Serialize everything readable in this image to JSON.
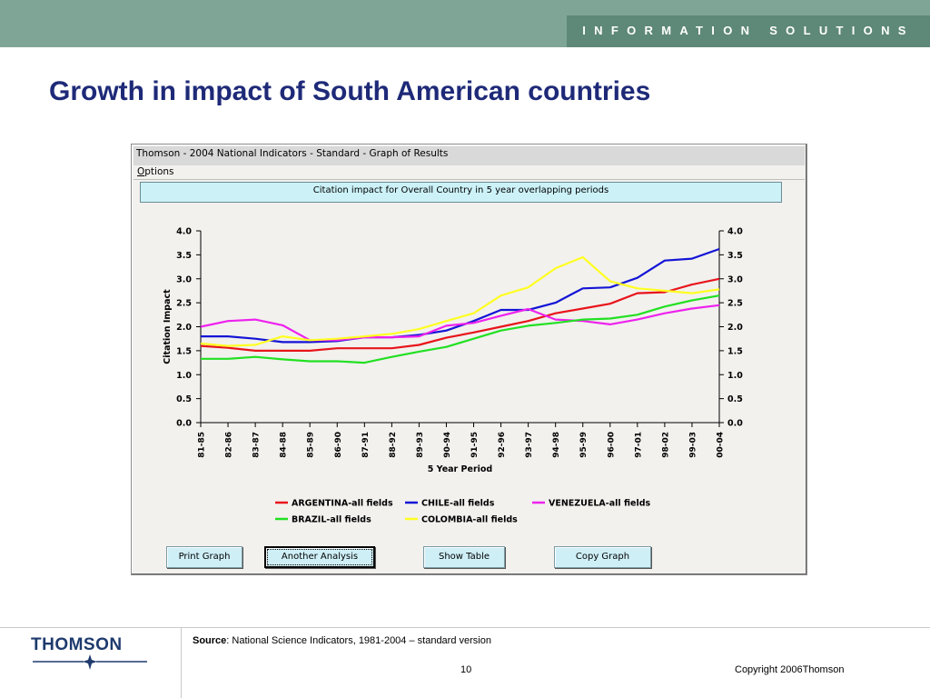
{
  "header": {
    "tagline": "INFORMATION SOLUTIONS"
  },
  "slide_title": "Growth in impact of South American countries",
  "window": {
    "title": "Thomson - 2004 National Indicators - Standard - Graph of Results",
    "menu_options": "Options",
    "chart_caption": "Citation impact for Overall Country in 5 year overlapping periods",
    "buttons": {
      "print": "Print Graph",
      "another": "Another Analysis",
      "show_table": "Show Table",
      "copy": "Copy Graph"
    }
  },
  "chart_data": {
    "type": "line",
    "title": "Citation impact for Overall Country in 5 year overlapping periods",
    "xlabel": "5 Year Period",
    "ylabel": "Citation Impact",
    "ylim": [
      0,
      4
    ],
    "yticks": [
      "0.0",
      "0.5",
      "1.0",
      "1.5",
      "2.0",
      "2.5",
      "3.0",
      "3.5",
      "4.0"
    ],
    "grid": false,
    "legend_position": "bottom",
    "categories": [
      "81-85",
      "82-86",
      "83-87",
      "84-88",
      "85-89",
      "86-90",
      "87-91",
      "88-92",
      "89-93",
      "90-94",
      "91-95",
      "92-96",
      "93-97",
      "94-98",
      "95-99",
      "96-00",
      "97-01",
      "98-02",
      "99-03",
      "00-04"
    ],
    "series": [
      {
        "name": "ARGENTINA-all fields",
        "color": "#e8141b",
        "values": [
          1.6,
          1.56,
          1.5,
          1.5,
          1.5,
          1.55,
          1.55,
          1.55,
          1.62,
          1.77,
          1.88,
          2.0,
          2.12,
          2.28,
          2.38,
          2.48,
          2.7,
          2.72,
          2.88,
          3.0
        ]
      },
      {
        "name": "CHILE-all fields",
        "color": "#1414d6",
        "values": [
          1.8,
          1.8,
          1.75,
          1.68,
          1.68,
          1.7,
          1.78,
          1.78,
          1.83,
          1.92,
          2.12,
          2.35,
          2.35,
          2.5,
          2.8,
          2.82,
          3.02,
          3.38,
          3.42,
          3.62
        ]
      },
      {
        "name": "VENEZUELA-all fields",
        "color": "#ee22ee",
        "values": [
          2.0,
          2.12,
          2.15,
          2.03,
          1.72,
          1.72,
          1.78,
          1.78,
          1.8,
          2.02,
          2.08,
          2.23,
          2.37,
          2.15,
          2.12,
          2.05,
          2.15,
          2.28,
          2.38,
          2.45
        ]
      },
      {
        "name": "BRAZIL-all fields",
        "color": "#22e022",
        "values": [
          1.33,
          1.33,
          1.37,
          1.32,
          1.28,
          1.28,
          1.25,
          1.37,
          1.48,
          1.58,
          1.75,
          1.92,
          2.02,
          2.08,
          2.15,
          2.17,
          2.25,
          2.42,
          2.55,
          2.65
        ]
      },
      {
        "name": "COLOMBIA-all fields",
        "color": "#ffff22",
        "values": [
          1.65,
          1.6,
          1.62,
          1.8,
          1.72,
          1.75,
          1.8,
          1.85,
          1.95,
          2.12,
          2.28,
          2.65,
          2.82,
          3.22,
          3.45,
          2.95,
          2.8,
          2.75,
          2.7,
          2.78
        ]
      }
    ]
  },
  "footer": {
    "logo": "THOMSON",
    "source_label": "Source",
    "source_text": ": National Science Indicators, 1981-2004 – standard version",
    "page_number": "10",
    "copyright": "Copyright 2006Thomson"
  }
}
